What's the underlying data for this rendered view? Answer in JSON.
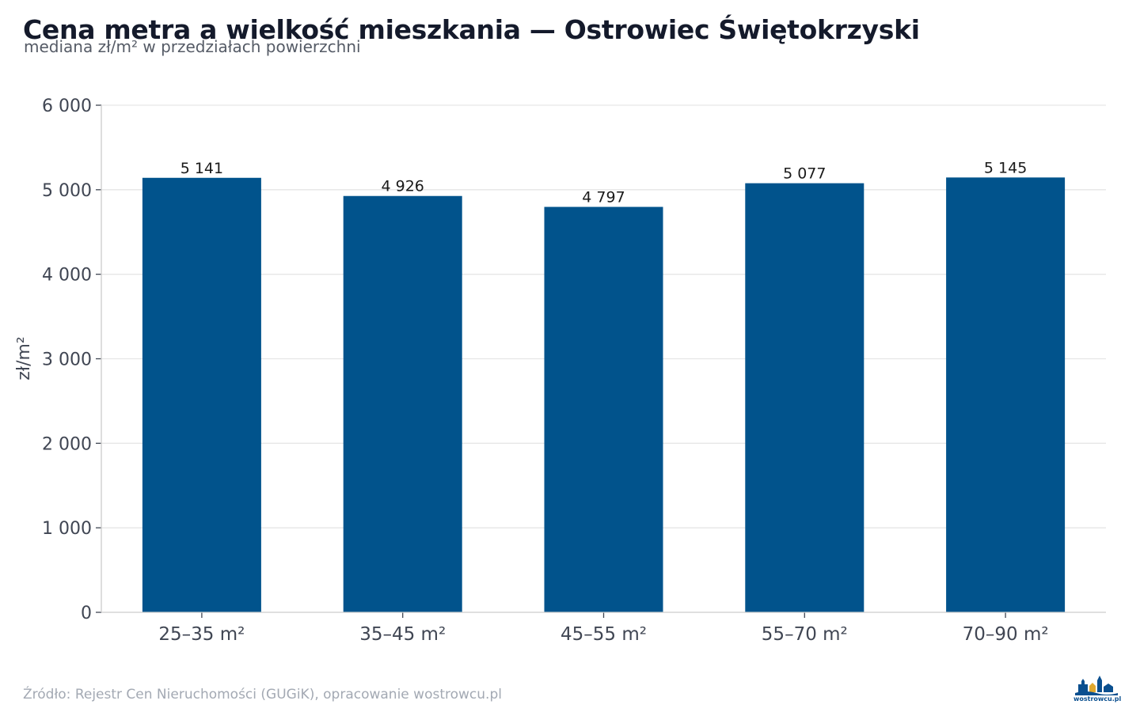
{
  "title": "Cena metra a wielkość mieszkania — Ostrowiec Świętokrzyski",
  "subtitle": "mediana zł/m² w przedziałach powierzchni",
  "footer": "Źródło: Rejestr Cen Nieruchomości (GUGiK), opracowanie wostrowcu.pl",
  "logo": {
    "text": "wostrowcu.pl",
    "icon": "town-skyline-logo-icon"
  },
  "colors": {
    "bar": "#01538c",
    "grid": "#e6e6e6",
    "title": "#141a2b",
    "axis": "#404653"
  },
  "chart_data": {
    "type": "bar",
    "title": "Cena metra a wielkość mieszkania — Ostrowiec Świętokrzyski",
    "subtitle": "mediana zł/m² w przedziałach powierzchni",
    "xlabel": "",
    "ylabel": "zł/m²",
    "categories": [
      "25–35 m²",
      "35–45 m²",
      "45–55 m²",
      "55–70 m²",
      "70–90 m²"
    ],
    "values": [
      5141,
      4926,
      4797,
      5077,
      5145
    ],
    "value_labels": [
      "5 141",
      "4 926",
      "4 797",
      "5 077",
      "5 145"
    ],
    "ylim": [
      0,
      6000
    ],
    "yticks": [
      0,
      1000,
      2000,
      3000,
      4000,
      5000,
      6000
    ],
    "ytick_labels": [
      "0",
      "1 000",
      "2 000",
      "3 000",
      "4 000",
      "5 000",
      "6 000"
    ],
    "grid": true,
    "legend": "none"
  }
}
